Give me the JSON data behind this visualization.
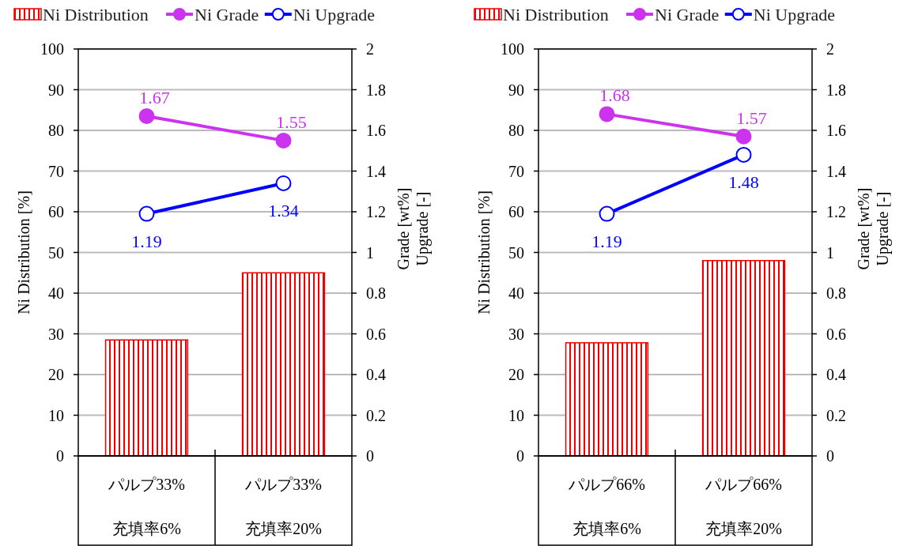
{
  "chart_data": [
    {
      "type": "bar",
      "categories": [
        "パルプ33%\n充填率6%",
        "パルプ33%\n充填率20%"
      ],
      "ylabel": "Ni Distribution [%]",
      "y2label": "Grade [wt%]\nUpgrade [-]",
      "ylim": [
        0,
        100
      ],
      "yticks": [
        0,
        10,
        20,
        30,
        40,
        50,
        60,
        70,
        80,
        90,
        100
      ],
      "y2lim": [
        0,
        2
      ],
      "y2ticks": [
        0,
        0.2,
        0.4,
        0.6,
        0.8,
        1,
        1.2,
        1.4,
        1.6,
        1.8,
        2
      ],
      "grid": "y",
      "legend": "top",
      "series": [
        {
          "name": "Ni Distribution",
          "color": "#ee0000",
          "values": [
            28.5,
            45
          ]
        },
        {
          "name": "Ni Grade",
          "type": "line",
          "axis": "y2",
          "color": "#cc33ee",
          "marker": "circle",
          "values": [
            1.67,
            1.55
          ],
          "value_labels": [
            "1.67",
            "1.55"
          ]
        },
        {
          "name": "Ni Upgrade",
          "type": "line",
          "axis": "y2",
          "color": "#0000ff",
          "marker": "open-circle",
          "values": [
            1.19,
            1.34
          ],
          "value_labels": [
            "1.19",
            "1.34"
          ]
        }
      ]
    },
    {
      "type": "bar",
      "categories": [
        "パルプ66%\n充填率6%",
        "パルプ66%\n充填率20%"
      ],
      "ylabel": "Ni Distribution [%]",
      "y2label": "Grade [wt%]\nUpgrade [-]",
      "ylim": [
        0,
        100
      ],
      "yticks": [
        0,
        10,
        20,
        30,
        40,
        50,
        60,
        70,
        80,
        90,
        100
      ],
      "y2lim": [
        0,
        2
      ],
      "y2ticks": [
        0,
        0.2,
        0.4,
        0.6,
        0.8,
        1,
        1.2,
        1.4,
        1.6,
        1.8,
        2
      ],
      "grid": "y",
      "legend": "top",
      "series": [
        {
          "name": "Ni Distribution",
          "color": "#ee0000",
          "values": [
            27.8,
            48
          ]
        },
        {
          "name": "Ni Grade",
          "type": "line",
          "axis": "y2",
          "color": "#cc33ee",
          "marker": "circle",
          "values": [
            1.68,
            1.57
          ],
          "value_labels": [
            "1.68",
            "1.57"
          ]
        },
        {
          "name": "Ni Upgrade",
          "type": "line",
          "axis": "y2",
          "color": "#0000ff",
          "marker": "open-circle",
          "values": [
            1.19,
            1.48
          ],
          "value_labels": [
            "1.19",
            "1.48"
          ]
        }
      ]
    }
  ]
}
